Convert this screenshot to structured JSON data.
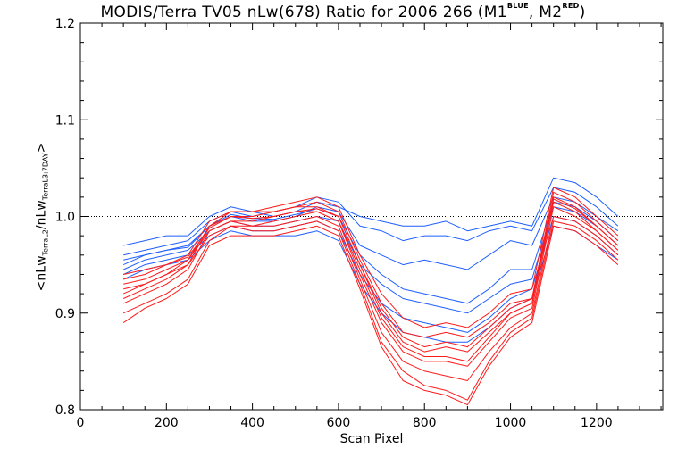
{
  "title": {
    "main": "MODIS/Terra TV05 nLw(678) Ratio for 2006 266 (M1",
    "m1_sup": "BLUE",
    "mid": ", M2",
    "m2_sup": "RED",
    "end": ")"
  },
  "ylabel": {
    "part1": "<nLw",
    "sub1": "TerraL2",
    "part2": "/nLw",
    "sub2": "TerraL3:7DAY",
    "part3": ">"
  },
  "chart_data": {
    "type": "line",
    "title": "MODIS/Terra TV05 nLw(678) Ratio for 2006 266 (M1 BLUE, M2 RED)",
    "xlabel": "Scan Pixel",
    "ylabel": "<nLw TerraL2 / nLw TerraL3:7DAY>",
    "xlim": [
      0,
      1354
    ],
    "ylim": [
      0.8,
      1.2
    ],
    "xticks": [
      0,
      200,
      400,
      600,
      800,
      1000,
      1200
    ],
    "yticks": [
      0.8,
      0.9,
      1.0,
      1.1,
      1.2
    ],
    "xtick_labels": [
      "0",
      "200",
      "400",
      "600",
      "800",
      "1000",
      "1200"
    ],
    "ytick_labels": [
      "0.8",
      "0.9",
      "1.0",
      "1.1",
      "1.2"
    ],
    "reference_line": {
      "y": 1.0,
      "style": "dotted"
    },
    "grid": false,
    "groups": [
      {
        "label": "M1",
        "color": "#1f5fff",
        "annotation": "BLUE"
      },
      {
        "label": "M2",
        "color": "#ff1a1a",
        "annotation": "RED"
      }
    ],
    "x": [
      100,
      150,
      200,
      250,
      300,
      350,
      400,
      450,
      500,
      550,
      600,
      650,
      700,
      750,
      800,
      850,
      900,
      950,
      1000,
      1050,
      1100,
      1150,
      1200,
      1250
    ],
    "series": [
      {
        "color": "#1f5fff",
        "values": [
          0.97,
          0.975,
          0.98,
          0.98,
          1.0,
          1.01,
          1.005,
          1.0,
          1.005,
          1.015,
          1.01,
          1.0,
          0.995,
          0.99,
          0.99,
          0.995,
          0.985,
          0.99,
          0.995,
          0.99,
          1.04,
          1.035,
          1.02,
          1.0
        ]
      },
      {
        "color": "#1f5fff",
        "values": [
          0.96,
          0.965,
          0.97,
          0.975,
          0.995,
          1.005,
          1.0,
          1.005,
          1.01,
          1.02,
          1.015,
          0.99,
          0.985,
          0.975,
          0.98,
          0.98,
          0.975,
          0.985,
          0.99,
          0.985,
          1.03,
          1.025,
          1.01,
          0.99
        ]
      },
      {
        "color": "#1f5fff",
        "values": [
          0.95,
          0.96,
          0.965,
          0.97,
          0.99,
          1.0,
          0.995,
          0.995,
          1.0,
          1.01,
          1.005,
          0.97,
          0.96,
          0.95,
          0.955,
          0.95,
          0.945,
          0.96,
          0.975,
          0.97,
          1.02,
          1.015,
          1.0,
          0.985
        ]
      },
      {
        "color": "#1f5fff",
        "values": [
          0.945,
          0.955,
          0.96,
          0.965,
          0.985,
          0.995,
          0.99,
          0.99,
          0.995,
          1.0,
          0.995,
          0.95,
          0.93,
          0.915,
          0.91,
          0.905,
          0.9,
          0.915,
          0.93,
          0.935,
          1.01,
          1.005,
          0.99,
          0.97
        ]
      },
      {
        "color": "#1f5fff",
        "values": [
          0.94,
          0.95,
          0.955,
          0.96,
          0.98,
          0.99,
          0.985,
          0.985,
          0.99,
          0.995,
          0.985,
          0.94,
          0.91,
          0.895,
          0.89,
          0.885,
          0.88,
          0.895,
          0.915,
          0.925,
          1.0,
          0.995,
          0.98,
          0.96
        ]
      },
      {
        "color": "#1f5fff",
        "values": [
          0.935,
          0.945,
          0.95,
          0.955,
          0.975,
          0.985,
          0.98,
          0.98,
          0.98,
          0.985,
          0.975,
          0.93,
          0.9,
          0.88,
          0.875,
          0.87,
          0.87,
          0.885,
          0.905,
          0.915,
          0.99,
          0.985,
          0.97,
          0.955
        ]
      },
      {
        "color": "#1f5fff",
        "values": [
          0.955,
          0.96,
          0.965,
          0.968,
          0.99,
          1.002,
          0.998,
          0.997,
          1.002,
          1.008,
          1.0,
          0.96,
          0.94,
          0.925,
          0.92,
          0.915,
          0.91,
          0.925,
          0.945,
          0.945,
          1.015,
          1.01,
          0.995,
          0.975
        ]
      },
      {
        "color": "#ff1a1a",
        "values": [
          0.92,
          0.93,
          0.94,
          0.95,
          0.99,
          1.0,
          1.0,
          1.005,
          1.01,
          1.01,
          1.0,
          0.95,
          0.9,
          0.87,
          0.86,
          0.865,
          0.86,
          0.88,
          0.9,
          0.91,
          1.02,
          1.01,
          0.99,
          0.97
        ]
      },
      {
        "color": "#ff1a1a",
        "values": [
          0.91,
          0.92,
          0.93,
          0.945,
          0.985,
          0.995,
          0.995,
          1.0,
          1.005,
          1.005,
          0.995,
          0.94,
          0.89,
          0.86,
          0.85,
          0.85,
          0.845,
          0.87,
          0.895,
          0.905,
          1.01,
          1.0,
          0.985,
          0.965
        ]
      },
      {
        "color": "#ff1a1a",
        "values": [
          0.9,
          0.91,
          0.92,
          0.935,
          0.975,
          0.99,
          0.99,
          0.99,
          0.995,
          1.0,
          0.99,
          0.935,
          0.88,
          0.85,
          0.84,
          0.835,
          0.83,
          0.86,
          0.885,
          0.9,
          1.0,
          0.995,
          0.98,
          0.96
        ]
      },
      {
        "color": "#ff1a1a",
        "values": [
          0.93,
          0.935,
          0.945,
          0.955,
          0.99,
          1.005,
          1.005,
          1.005,
          1.01,
          1.015,
          1.005,
          0.955,
          0.91,
          0.88,
          0.875,
          0.88,
          0.875,
          0.89,
          0.91,
          0.915,
          1.025,
          1.015,
          0.995,
          0.975
        ]
      },
      {
        "color": "#ff1a1a",
        "values": [
          0.915,
          0.925,
          0.935,
          0.95,
          0.98,
          0.99,
          0.985,
          0.985,
          0.99,
          0.995,
          0.985,
          0.93,
          0.87,
          0.84,
          0.825,
          0.82,
          0.81,
          0.85,
          0.88,
          0.895,
          0.995,
          0.99,
          0.975,
          0.955
        ]
      },
      {
        "color": "#ff1a1a",
        "values": [
          0.94,
          0.945,
          0.95,
          0.96,
          0.995,
          1.005,
          1.005,
          1.01,
          1.015,
          1.02,
          1.01,
          0.96,
          0.92,
          0.895,
          0.885,
          0.89,
          0.885,
          0.9,
          0.92,
          0.925,
          1.03,
          1.02,
          1.0,
          0.98
        ]
      },
      {
        "color": "#ff1a1a",
        "values": [
          0.89,
          0.905,
          0.915,
          0.93,
          0.97,
          0.98,
          0.98,
          0.98,
          0.985,
          0.99,
          0.98,
          0.925,
          0.865,
          0.83,
          0.82,
          0.815,
          0.805,
          0.845,
          0.875,
          0.89,
          0.99,
          0.985,
          0.97,
          0.95
        ]
      },
      {
        "color": "#ff1a1a",
        "values": [
          0.925,
          0.93,
          0.94,
          0.955,
          0.985,
          0.995,
          0.99,
          0.995,
          1.0,
          1.005,
          0.995,
          0.945,
          0.895,
          0.865,
          0.855,
          0.855,
          0.85,
          0.875,
          0.9,
          0.91,
          1.015,
          1.005,
          0.985,
          0.965
        ]
      },
      {
        "color": "#ff1a1a",
        "values": [
          0.935,
          0.94,
          0.95,
          0.958,
          0.988,
          1.0,
          0.998,
          1.0,
          1.005,
          1.008,
          1.0,
          0.95,
          0.905,
          0.875,
          0.865,
          0.87,
          0.865,
          0.885,
          0.905,
          0.915,
          1.018,
          1.008,
          0.99,
          0.97
        ]
      }
    ]
  }
}
